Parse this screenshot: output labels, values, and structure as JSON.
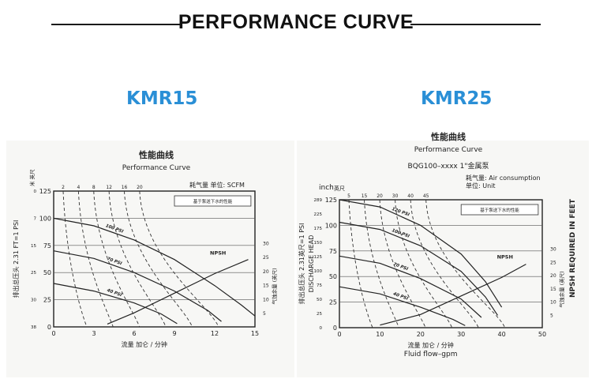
{
  "header": {
    "title": "PERFORMANCE CURVE"
  },
  "colors": {
    "accent": "#2a8fd6",
    "ink": "#222222",
    "chart_bg": "#f7f7f5"
  },
  "chart_data": [
    {
      "type": "line",
      "model": "KMR15",
      "title_cn": "性能曲线",
      "title": "Performance Curve",
      "air_label": "耗气量   单位: SCFM",
      "air_values": [
        "2",
        "4",
        "8",
        "12",
        "16",
        "20"
      ],
      "legend_box": "基于泵送下水的性能",
      "y_unit_cn": "米 英尺",
      "ylabel_cn": "排出总压头 2.31 FT=1 PSI",
      "y_left": {
        "min": 0,
        "max": 125,
        "ticks": [
          0,
          25,
          50,
          75,
          100,
          125
        ]
      },
      "y_left_m": [
        "0",
        "7",
        "15",
        "25",
        "30",
        "38"
      ],
      "x": {
        "min": 0,
        "max": 15,
        "ticks": [
          0,
          3,
          6,
          9,
          12,
          15
        ]
      },
      "xlabel_cn": "流量 加仑 / 分钟",
      "y_right": {
        "min": 0,
        "max": 30,
        "ticks": [
          5,
          10,
          15,
          20,
          25,
          30
        ],
        "label_cn": "气蚀余量 (英尺)"
      },
      "series": [
        {
          "name": "100 PSI",
          "points": [
            [
              0,
              100
            ],
            [
              3,
              93
            ],
            [
              6,
              80
            ],
            [
              9,
              62
            ],
            [
              12,
              38
            ],
            [
              14,
              20
            ],
            [
              15,
              10
            ]
          ]
        },
        {
          "name": "70 PSI",
          "points": [
            [
              0,
              70
            ],
            [
              3,
              63
            ],
            [
              6,
              50
            ],
            [
              9,
              33
            ],
            [
              11.5,
              15
            ],
            [
              12.5,
              5
            ]
          ]
        },
        {
          "name": "40 PSI",
          "points": [
            [
              0,
              40
            ],
            [
              3,
              33
            ],
            [
              6,
              22
            ],
            [
              8,
              12
            ],
            [
              9.2,
              3
            ]
          ]
        }
      ],
      "npsh": {
        "name": "NPSH",
        "points": [
          [
            4,
            1
          ],
          [
            6,
            5
          ],
          [
            9,
            12
          ],
          [
            12,
            19
          ],
          [
            14.5,
            24
          ]
        ]
      }
    },
    {
      "type": "line",
      "model": "KMR25",
      "title_cn": "性能曲线",
      "title": "Performance Curve",
      "subtitle": "BQG100–xxxx 1\"金属泵",
      "air_label": "耗气量:  Air consumption",
      "unit_label": "单位:   Unit",
      "air_values": [
        "5",
        "15",
        "20",
        "30",
        "40",
        "45"
      ],
      "legend_box": "基于泵送下水的性能",
      "y_unit": "inch",
      "y_unit_cn": "英尺",
      "ylabel_cn": "排出总压头 2.31英尺=1 PSI",
      "ylabel": "DISCHARGE HEAD",
      "y_left": {
        "min": 0,
        "max": 125,
        "ticks": [
          0,
          25,
          50,
          75,
          100,
          125
        ]
      },
      "y_left_m": [
        "289",
        "225",
        "175",
        "150",
        "125",
        "100",
        "75",
        "50",
        "25",
        "0"
      ],
      "x": {
        "min": 0,
        "max": 50,
        "ticks": [
          0,
          10,
          20,
          30,
          40,
          50
        ]
      },
      "xlabel_cn": "流量 加仑 / 分钟",
      "xlabel": "Fluid flow–gpm",
      "y_right": {
        "min": 0,
        "max": 30,
        "ticks": [
          5,
          10,
          15,
          20,
          25,
          30
        ],
        "label_cn": "气蚀余量 (英尺)"
      },
      "right_label": "NPSH REQUIRED IN FEET",
      "series": [
        {
          "name": "120 PSI",
          "points": [
            [
              0,
              125
            ],
            [
              10,
              118
            ],
            [
              20,
              100
            ],
            [
              30,
              72
            ],
            [
              36,
              45
            ],
            [
              40,
              20
            ]
          ]
        },
        {
          "name": "100 PSI",
          "points": [
            [
              0,
              103
            ],
            [
              10,
              96
            ],
            [
              20,
              80
            ],
            [
              30,
              55
            ],
            [
              36,
              30
            ],
            [
              39,
              12
            ]
          ]
        },
        {
          "name": "70 PSI",
          "points": [
            [
              0,
              70
            ],
            [
              10,
              63
            ],
            [
              20,
              48
            ],
            [
              30,
              28
            ],
            [
              35,
              10
            ]
          ]
        },
        {
          "name": "40 PSI",
          "points": [
            [
              0,
              40
            ],
            [
              10,
              33
            ],
            [
              20,
              20
            ],
            [
              28,
              8
            ],
            [
              31,
              2
            ]
          ]
        }
      ],
      "npsh": {
        "name": "NPSH",
        "points": [
          [
            10,
            1
          ],
          [
            20,
            5
          ],
          [
            30,
            12
          ],
          [
            40,
            19
          ],
          [
            46,
            24
          ]
        ]
      }
    }
  ]
}
